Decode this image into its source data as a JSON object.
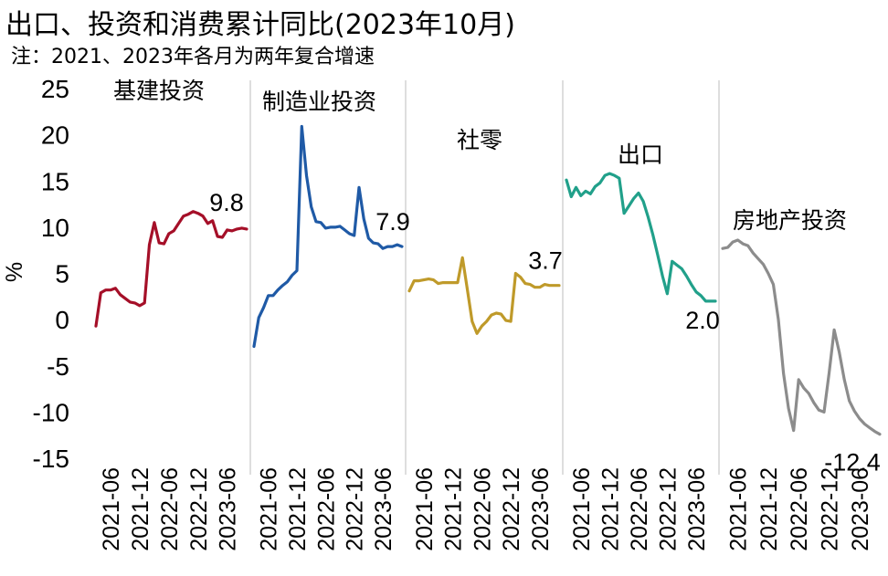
{
  "title": "出口、投资和消费累计同比(2023年10月)",
  "note": "注：2021、2023年各月为两年复合增速",
  "chart_data": {
    "type": "line",
    "ylabel": "%",
    "ylim": [
      -15,
      25
    ],
    "yticks": [
      "25",
      "20",
      "15",
      "10",
      "5",
      "0",
      "-5",
      "-10",
      "-15"
    ],
    "x": [
      "2021-03",
      "2021-04",
      "2021-05",
      "2021-06",
      "2021-07",
      "2021-08",
      "2021-09",
      "2021-10",
      "2021-11",
      "2021-12",
      "2022-01",
      "2022-02",
      "2022-03",
      "2022-04",
      "2022-05",
      "2022-06",
      "2022-07",
      "2022-08",
      "2022-09",
      "2022-10",
      "2022-11",
      "2022-12",
      "2023-01",
      "2023-02",
      "2023-03",
      "2023-04",
      "2023-05",
      "2023-06",
      "2023-07",
      "2023-08",
      "2023-09",
      "2023-10"
    ],
    "xticks": [
      "2021-06",
      "2021-12",
      "2022-06",
      "2022-12",
      "2023-06"
    ],
    "series": [
      {
        "name": "基建投资",
        "color": "#a50f28",
        "last_label": "9.8",
        "values": [
          -0.7,
          2.9,
          3.2,
          3.2,
          3.4,
          2.7,
          2.3,
          1.9,
          1.8,
          1.5,
          1.8,
          8.1,
          10.5,
          8.3,
          8.2,
          9.3,
          9.6,
          10.4,
          11.2,
          11.4,
          11.7,
          11.5,
          11.2,
          10.4,
          10.7,
          9.0,
          8.9,
          9.7,
          9.6,
          9.8,
          9.9,
          9.8
        ]
      },
      {
        "name": "制造业投资",
        "color": "#1f5aa6",
        "last_label": "7.9",
        "values": [
          -2.9,
          0.2,
          1.3,
          2.6,
          2.6,
          3.2,
          3.7,
          4.1,
          4.8,
          5.3,
          20.9,
          15.6,
          12.2,
          10.6,
          10.5,
          9.9,
          10.0,
          10.0,
          10.1,
          9.7,
          9.3,
          9.1,
          14.3,
          10.9,
          8.8,
          8.3,
          8.2,
          7.7,
          7.9,
          7.9,
          8.1,
          7.9
        ]
      },
      {
        "name": "社零",
        "color": "#bf9a2a",
        "last_label": "3.7",
        "values": [
          3.1,
          4.2,
          4.2,
          4.3,
          4.4,
          4.3,
          3.9,
          4.0,
          4.0,
          4.0,
          4.0,
          6.7,
          3.3,
          -0.2,
          -1.5,
          -0.7,
          -0.2,
          0.5,
          0.7,
          0.6,
          -0.1,
          -0.2,
          5.0,
          4.6,
          3.9,
          3.8,
          3.5,
          3.5,
          3.8,
          3.7,
          3.7,
          3.7
        ]
      },
      {
        "name": "出口",
        "color": "#21a08a",
        "last_label": "2.0",
        "values": [
          15.1,
          13.3,
          14.3,
          13.4,
          13.9,
          13.6,
          14.4,
          14.8,
          15.6,
          15.8,
          15.6,
          15.3,
          11.5,
          12.3,
          13.1,
          13.7,
          12.8,
          11.1,
          9.2,
          7.0,
          4.7,
          2.8,
          6.3,
          5.9,
          5.5,
          4.7,
          3.8,
          3.0,
          2.6,
          2.0,
          2.0,
          2.0
        ]
      },
      {
        "name": "房地产投资",
        "color": "#8c8c8c",
        "last_label": "-12.4",
        "values": [
          7.7,
          7.8,
          8.4,
          8.6,
          8.2,
          8.0,
          7.2,
          6.6,
          6.0,
          5.0,
          3.8,
          0.0,
          -5.8,
          -9.6,
          -12.0,
          -6.5,
          -7.4,
          -8.0,
          -9.0,
          -9.8,
          -10.0,
          -5.8,
          -1.1,
          -3.5,
          -6.5,
          -8.8,
          -9.9,
          -10.7,
          -11.3,
          -11.7,
          -12.1,
          -12.4
        ]
      }
    ],
    "panel_labels": [
      "基建投资",
      "制造业投资",
      "社零",
      "出口",
      "房地产投资"
    ]
  }
}
